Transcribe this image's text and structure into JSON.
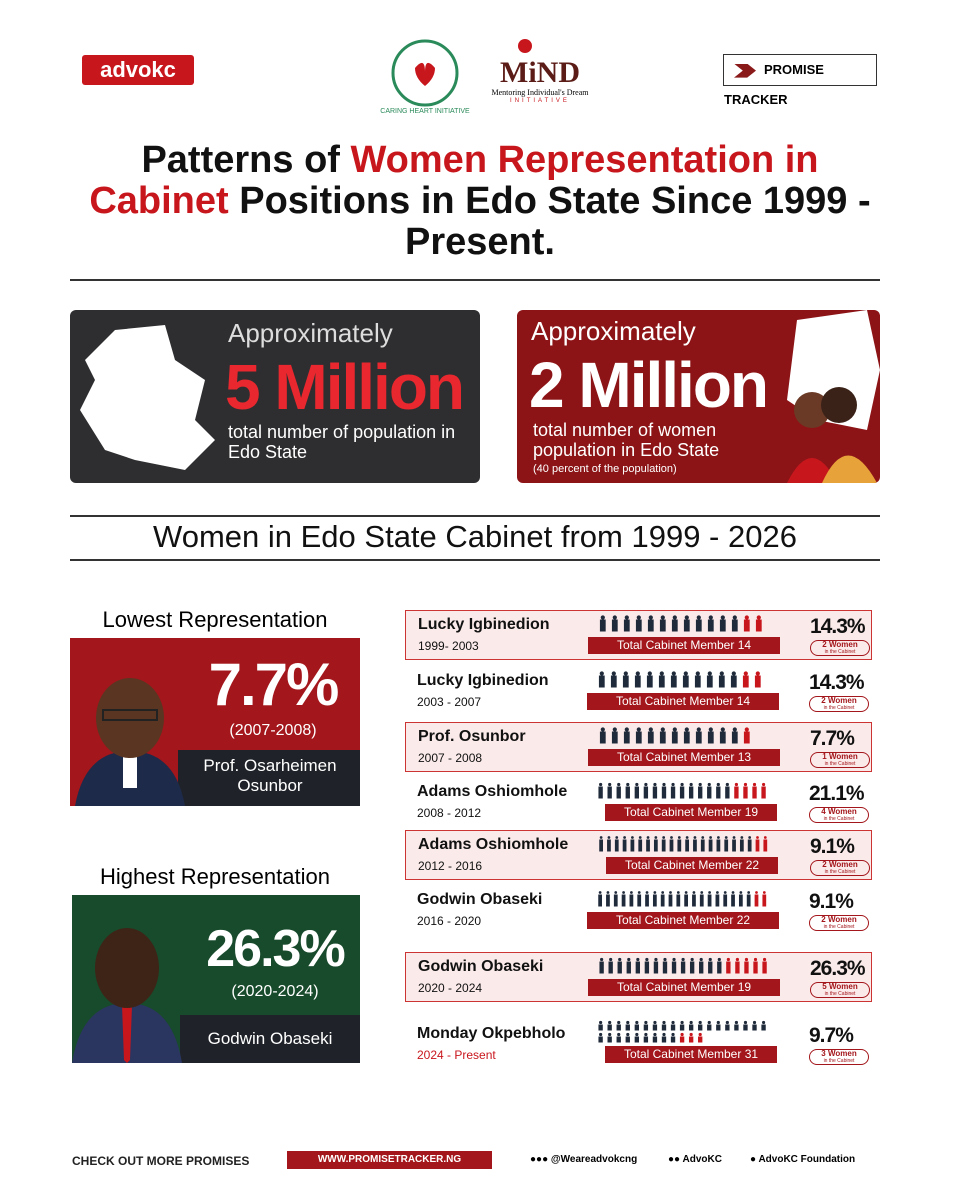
{
  "header": {
    "brand": "advokc",
    "partner_1": "CARING HEART INITIATIVE",
    "partner_2": {
      "name": "MiND",
      "tagline": "Mentoring Individual's Dream",
      "sub": "INITIATIVE"
    },
    "tracker": "PROMISE TRACKER"
  },
  "title": {
    "plain_1": "Patterns of ",
    "highlight": "Women Representation in Cabinet",
    "plain_2": " Positions in Edo State Since 1999 - Present."
  },
  "stats": [
    {
      "lead": "Approximately",
      "figure": "5 Million",
      "text": "total number of population in Edo State"
    },
    {
      "lead": "Approximately",
      "figure": "2 Million",
      "text": "total number of women population in Edo State",
      "note": "(40 percent of the population)"
    }
  ],
  "section_title": "Women in Edo State Cabinet from 1999 - 2026",
  "highlights": [
    {
      "heading": "Lowest Representation",
      "percent": "7.7%",
      "period": "(2007-2008)",
      "name": "Prof. Osarheimen Osunbor"
    },
    {
      "heading": "Highest Representation",
      "percent": "26.3%",
      "period": "(2020-2024)",
      "name": "Godwin Obaseki"
    }
  ],
  "cabinet": {
    "member_label": "Total Cabinet Member",
    "women_label": "Women",
    "women_sub": "in the Cabinet",
    "rows": [
      {
        "name": "Lucky Igbinedion",
        "period": "1999- 2003",
        "members": 14,
        "women": 2,
        "percent": "14.3%"
      },
      {
        "name": "Lucky Igbinedion",
        "period": "2003 - 2007",
        "members": 14,
        "women": 2,
        "percent": "14.3%"
      },
      {
        "name": "Prof. Osunbor",
        "period": "2007 - 2008",
        "members": 13,
        "women": 1,
        "percent": "7.7%"
      },
      {
        "name": "Adams Oshiomhole",
        "period": "2008 - 2012",
        "members": 19,
        "women": 4,
        "percent": "21.1%"
      },
      {
        "name": "Adams Oshiomhole",
        "period": "2012 - 2016",
        "members": 22,
        "women": 2,
        "percent": "9.1%"
      },
      {
        "name": "Godwin Obaseki",
        "period": "2016 - 2020",
        "members": 22,
        "women": 2,
        "percent": "9.1%"
      },
      {
        "name": "Godwin Obaseki",
        "period": "2020 - 2024",
        "members": 19,
        "women": 5,
        "percent": "26.3%"
      },
      {
        "name": "Monday Okpebholo",
        "period": "2024 - Present",
        "members": 31,
        "women": 3,
        "percent": "9.7%"
      }
    ]
  },
  "footer": {
    "cta": "CHECK OUT MORE PROMISES",
    "url": "WWW.PROMISETRACKER.NG",
    "handle": "@Weareadvokcng",
    "page": "AdvoKC",
    "foundation": "AdvoKC Foundation"
  }
}
